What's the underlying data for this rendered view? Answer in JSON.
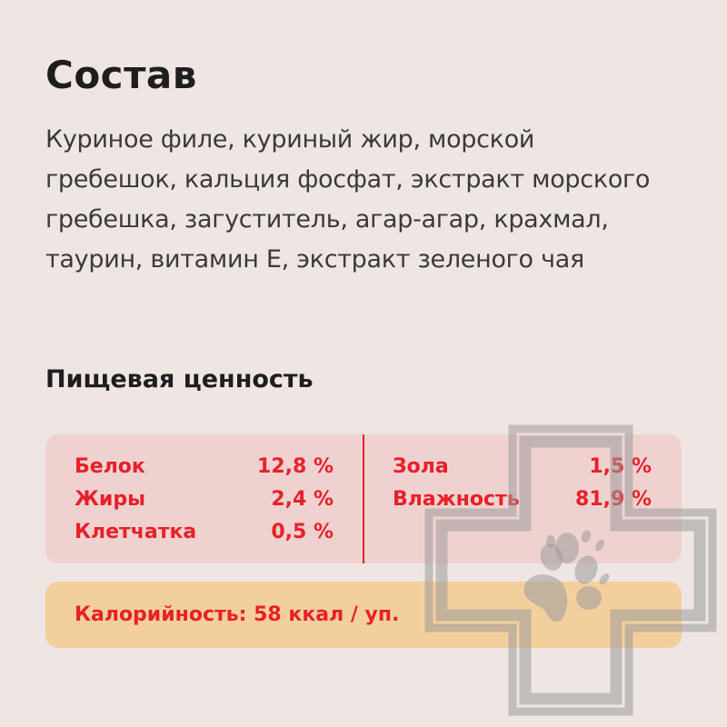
{
  "title": "Состав",
  "composition": "Куриное филе, куриный жир, морской гребешок, кальция фосфат, экстракт морского гребешка, загуститель, агар-агар, крахмал, таурин, витамин Е, экстракт зеленого чая",
  "nutrition_title": "Пищевая ценность",
  "nutrition_left": [
    {
      "label": "Белок",
      "value": "12,8 %"
    },
    {
      "label": "Жиры",
      "value": "2,4 %"
    },
    {
      "label": "Клетчатка",
      "value": "0,5 %"
    }
  ],
  "nutrition_right": [
    {
      "label": "Зола",
      "value": "1,5 %"
    },
    {
      "label": "Влажность",
      "value": "81,9 %"
    }
  ],
  "calories": "Калорийность: 58 ккал / уп.",
  "colors": {
    "accent": "#e8202a",
    "panel": "#efd2d0",
    "calorie_panel": "#f4cf9e",
    "background": "#efe6e3"
  },
  "watermark_icon": "vet-cross-paw-icon"
}
